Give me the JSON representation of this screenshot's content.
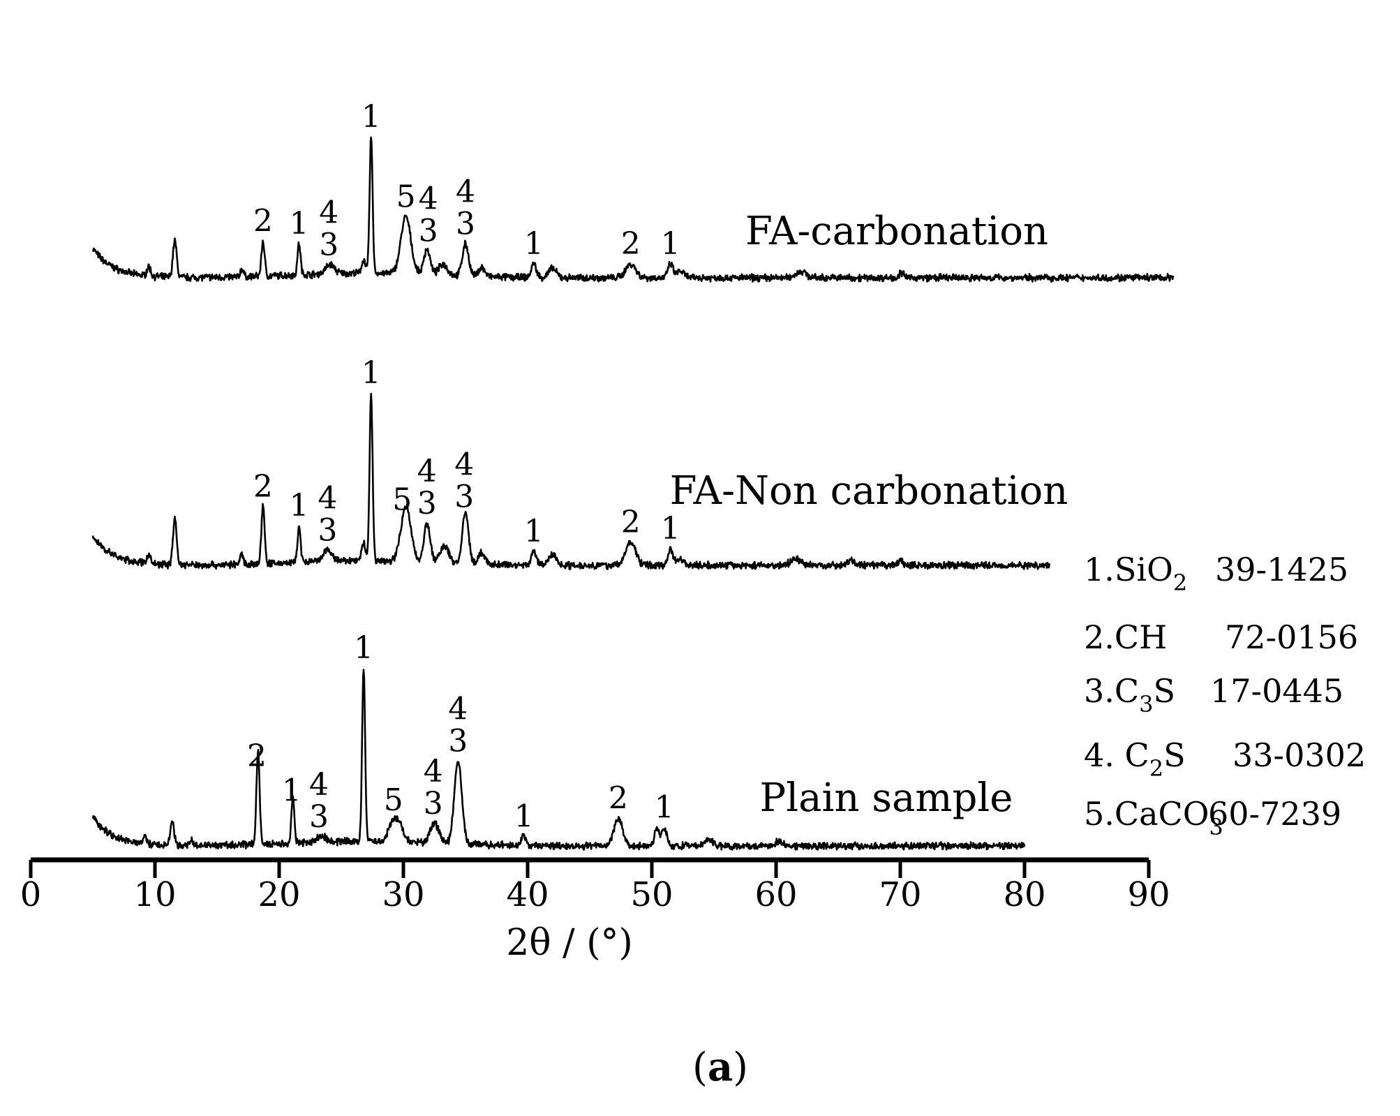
{
  "chart_data": {
    "type": "line",
    "xlabel": "2θ / (°)",
    "ylabel": "",
    "xlim": [
      0,
      90
    ],
    "x_ticks": [
      "0",
      "10",
      "20",
      "30",
      "40",
      "50",
      "60",
      "70",
      "80",
      "90"
    ],
    "y_ticks_shown": false,
    "grid": false,
    "series": [
      {
        "name": "FA-carbonation",
        "x_end": 92,
        "peaks": [
          {
            "x": 9.5,
            "h": 0.1,
            "w": 0.15
          },
          {
            "x": 11.6,
            "h": 0.4,
            "w": 0.15
          },
          {
            "x": 17.0,
            "h": 0.09,
            "w": 0.12
          },
          {
            "x": 18.7,
            "h": 0.38,
            "w": 0.13
          },
          {
            "x": 21.6,
            "h": 0.34,
            "w": 0.12
          },
          {
            "x": 24.1,
            "h": 0.1,
            "w": 0.35
          },
          {
            "x": 26.8,
            "h": 0.15,
            "w": 0.15
          },
          {
            "x": 27.4,
            "h": 1.48,
            "w": 0.12
          },
          {
            "x": 30.2,
            "h": 0.62,
            "w": 0.4
          },
          {
            "x": 31.9,
            "h": 0.28,
            "w": 0.25
          },
          {
            "x": 33.2,
            "h": 0.12,
            "w": 0.35
          },
          {
            "x": 35.0,
            "h": 0.35,
            "w": 0.25
          },
          {
            "x": 36.3,
            "h": 0.1,
            "w": 0.25
          },
          {
            "x": 40.5,
            "h": 0.15,
            "w": 0.2
          },
          {
            "x": 42.0,
            "h": 0.1,
            "w": 0.3
          },
          {
            "x": 48.3,
            "h": 0.15,
            "w": 0.4
          },
          {
            "x": 51.5,
            "h": 0.15,
            "w": 0.2
          },
          {
            "x": 52.3,
            "h": 0.07,
            "w": 0.3
          },
          {
            "x": 62.0,
            "h": 0.07,
            "w": 0.4
          },
          {
            "x": 70.1,
            "h": 0.05,
            "w": 0.2
          }
        ],
        "peak_labels": [
          {
            "x": 18.7,
            "lines": [
              "2"
            ]
          },
          {
            "x": 21.6,
            "lines": [
              "1"
            ]
          },
          {
            "x": 24.0,
            "lines": [
              "4",
              "3"
            ]
          },
          {
            "x": 27.4,
            "lines": [
              "1"
            ]
          },
          {
            "x": 30.2,
            "lines": [
              "5"
            ]
          },
          {
            "x": 32.0,
            "lines": [
              "4",
              "3"
            ]
          },
          {
            "x": 35.0,
            "lines": [
              "4",
              "3"
            ]
          },
          {
            "x": 40.5,
            "lines": [
              "1"
            ]
          },
          {
            "x": 48.3,
            "lines": [
              "2"
            ]
          },
          {
            "x": 51.5,
            "lines": [
              "1"
            ]
          }
        ]
      },
      {
        "name": "FA-Non carbonation",
        "x_end": 82,
        "peaks": [
          {
            "x": 9.5,
            "h": 0.1,
            "w": 0.15
          },
          {
            "x": 11.6,
            "h": 0.5,
            "w": 0.15
          },
          {
            "x": 17.0,
            "h": 0.12,
            "w": 0.12
          },
          {
            "x": 18.7,
            "h": 0.62,
            "w": 0.13
          },
          {
            "x": 21.6,
            "h": 0.4,
            "w": 0.12
          },
          {
            "x": 23.9,
            "h": 0.12,
            "w": 0.35
          },
          {
            "x": 26.8,
            "h": 0.2,
            "w": 0.15
          },
          {
            "x": 27.4,
            "h": 1.82,
            "w": 0.12
          },
          {
            "x": 30.2,
            "h": 0.6,
            "w": 0.4
          },
          {
            "x": 31.9,
            "h": 0.42,
            "w": 0.25
          },
          {
            "x": 33.3,
            "h": 0.18,
            "w": 0.35
          },
          {
            "x": 35.0,
            "h": 0.55,
            "w": 0.25
          },
          {
            "x": 36.3,
            "h": 0.12,
            "w": 0.25
          },
          {
            "x": 40.5,
            "h": 0.15,
            "w": 0.2
          },
          {
            "x": 42.0,
            "h": 0.12,
            "w": 0.3
          },
          {
            "x": 48.3,
            "h": 0.25,
            "w": 0.4
          },
          {
            "x": 51.5,
            "h": 0.18,
            "w": 0.2
          },
          {
            "x": 52.3,
            "h": 0.07,
            "w": 0.3
          },
          {
            "x": 61.6,
            "h": 0.07,
            "w": 0.4
          },
          {
            "x": 66.0,
            "h": 0.05,
            "w": 0.3
          },
          {
            "x": 70.0,
            "h": 0.05,
            "w": 0.2
          }
        ],
        "peak_labels": [
          {
            "x": 18.7,
            "lines": [
              "2"
            ]
          },
          {
            "x": 21.6,
            "lines": [
              "1"
            ]
          },
          {
            "x": 23.9,
            "lines": [
              "4",
              "3"
            ]
          },
          {
            "x": 27.4,
            "lines": [
              "1"
            ]
          },
          {
            "x": 29.9,
            "lines": [
              "5"
            ]
          },
          {
            "x": 31.9,
            "lines": [
              "4",
              "3"
            ]
          },
          {
            "x": 34.9,
            "lines": [
              "4",
              "3"
            ]
          },
          {
            "x": 40.5,
            "lines": [
              "1"
            ]
          },
          {
            "x": 48.3,
            "lines": [
              "2"
            ]
          },
          {
            "x": 51.5,
            "lines": [
              "1"
            ]
          }
        ]
      },
      {
        "name": "Plain sample",
        "x_end": 80,
        "peaks": [
          {
            "x": 9.2,
            "h": 0.07,
            "w": 0.15
          },
          {
            "x": 11.4,
            "h": 0.25,
            "w": 0.15
          },
          {
            "x": 12.9,
            "h": 0.07,
            "w": 0.12
          },
          {
            "x": 18.3,
            "h": 1.0,
            "w": 0.13
          },
          {
            "x": 21.1,
            "h": 0.5,
            "w": 0.12
          },
          {
            "x": 23.4,
            "h": 0.07,
            "w": 0.35
          },
          {
            "x": 26.8,
            "h": 1.88,
            "w": 0.12
          },
          {
            "x": 29.0,
            "h": 0.15,
            "w": 0.3
          },
          {
            "x": 29.6,
            "h": 0.22,
            "w": 0.35
          },
          {
            "x": 32.5,
            "h": 0.22,
            "w": 0.35
          },
          {
            "x": 34.4,
            "h": 0.9,
            "w": 0.3
          },
          {
            "x": 39.7,
            "h": 0.1,
            "w": 0.2
          },
          {
            "x": 47.3,
            "h": 0.3,
            "w": 0.35
          },
          {
            "x": 50.4,
            "h": 0.18,
            "w": 0.2
          },
          {
            "x": 51.0,
            "h": 0.2,
            "w": 0.2
          },
          {
            "x": 54.6,
            "h": 0.07,
            "w": 0.3
          },
          {
            "x": 60.2,
            "h": 0.05,
            "w": 0.3
          }
        ],
        "peak_labels": [
          {
            "x": 18.2,
            "lines": [
              "2"
            ]
          },
          {
            "x": 21.0,
            "lines": [
              "1"
            ]
          },
          {
            "x": 23.2,
            "lines": [
              "4",
              "3"
            ]
          },
          {
            "x": 26.8,
            "lines": [
              "1"
            ]
          },
          {
            "x": 29.2,
            "lines": [
              "5"
            ]
          },
          {
            "x": 32.4,
            "lines": [
              "4",
              "3"
            ]
          },
          {
            "x": 34.4,
            "lines": [
              "4",
              "3"
            ]
          },
          {
            "x": 39.7,
            "lines": [
              "1"
            ]
          },
          {
            "x": 47.3,
            "lines": [
              "2"
            ]
          },
          {
            "x": 51.0,
            "lines": [
              "1"
            ]
          }
        ]
      }
    ],
    "legend": {
      "placement": "right",
      "entries": [
        {
          "index": "1.",
          "formula": "SiO",
          "sub": "2",
          "rest": "",
          "code": "39-1425"
        },
        {
          "index": "2.",
          "formula": "CH",
          "sub": "",
          "rest": "",
          "code": "72-0156"
        },
        {
          "index": "3.",
          "formula": "C",
          "sub": "3",
          "rest": "S",
          "code": "17-0445"
        },
        {
          "index": "4. ",
          "formula": "C",
          "sub": "2",
          "rest": "S",
          "code": "33-0302"
        },
        {
          "index": "5.",
          "formula": "CaCO",
          "sub": "3",
          "rest": "",
          "code": "60-7239"
        }
      ]
    },
    "panel_label": "a"
  }
}
